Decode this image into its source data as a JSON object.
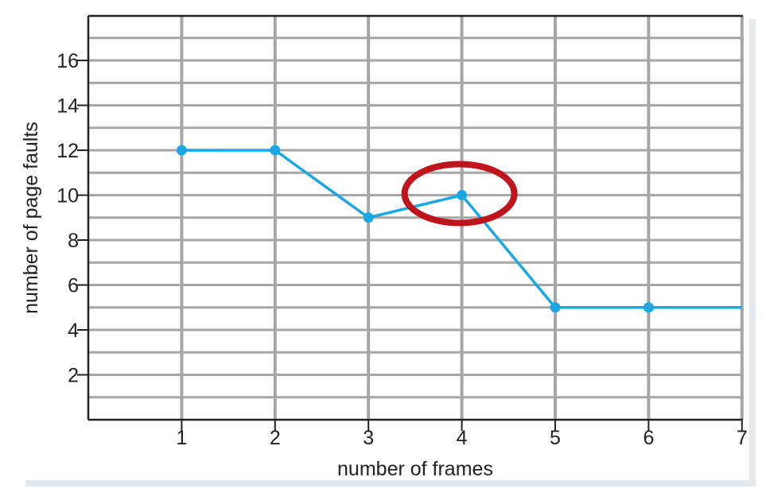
{
  "chart_data": {
    "type": "line",
    "title": "",
    "xlabel": "number of frames",
    "ylabel": "number of page faults",
    "x_ticks": [
      "1",
      "2",
      "3",
      "4",
      "5",
      "6",
      "7"
    ],
    "y_ticks": [
      "2",
      "4",
      "6",
      "8",
      "10",
      "12",
      "14",
      "16"
    ],
    "xlim": [
      0,
      7
    ],
    "ylim": [
      0,
      18
    ],
    "grid": true,
    "series": [
      {
        "x": [
          1,
          2,
          3,
          4,
          5,
          6,
          7
        ],
        "y": [
          12,
          12,
          9,
          10,
          5,
          5,
          5
        ],
        "markers": [
          true,
          true,
          true,
          true,
          true,
          true,
          false
        ]
      }
    ],
    "annotations": [
      {
        "type": "ellipse-highlight",
        "x": 4,
        "y": 10
      }
    ],
    "colors": {
      "line": "#1aa7e3",
      "grid": "#a6a6a6",
      "axis": "#222222",
      "highlight": "#c0141c",
      "shadow": "#e6e9ec"
    }
  }
}
